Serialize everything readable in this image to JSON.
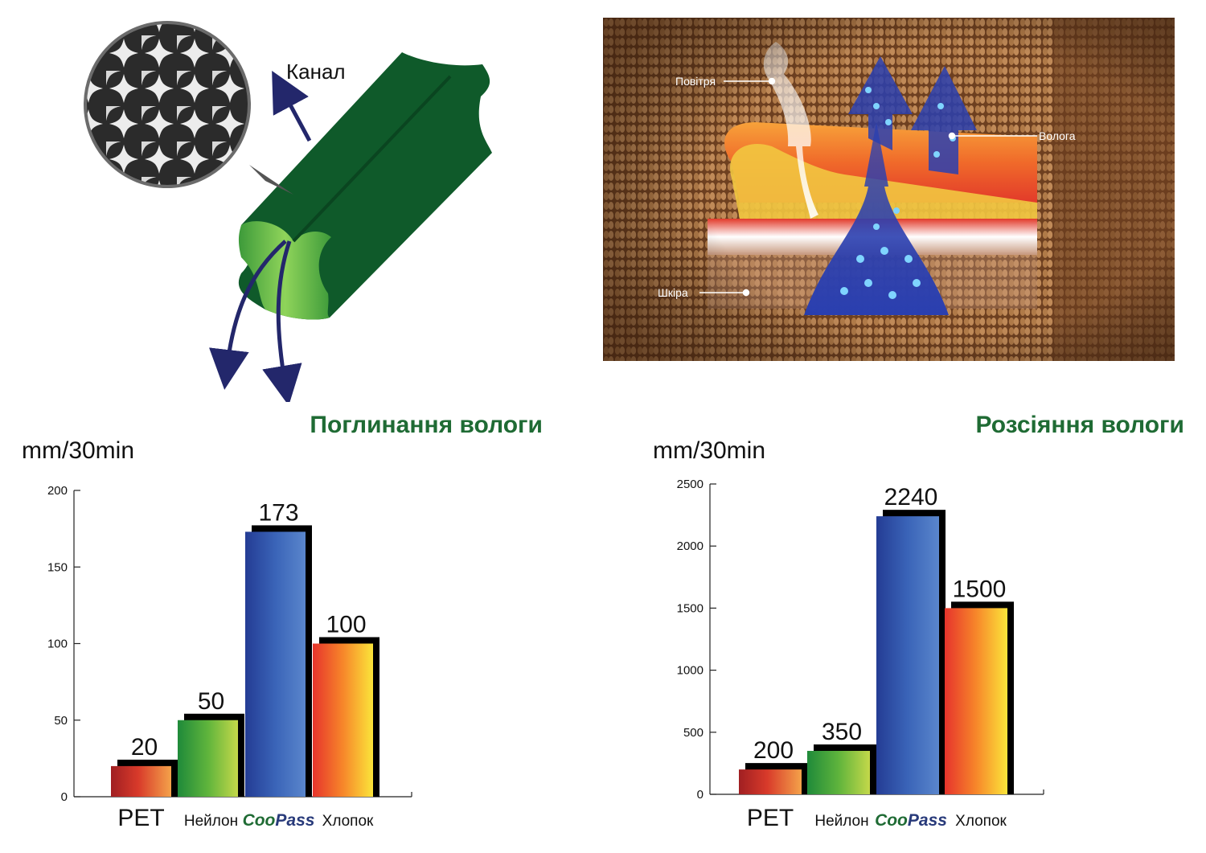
{
  "illustration": {
    "channel_label": "Канал",
    "air_label": "Повітря",
    "moisture_label": "Волога",
    "skin_label": "Шкіра"
  },
  "colors": {
    "title_green": "#1f6b34",
    "fiber_green": "#0f5a2a",
    "arrow_navy": "#23276b",
    "fabric_brown": "#8a5a34",
    "pet_bar": "#c62828",
    "nylon_bar": "#2e9d3a",
    "coopass_bar": "#3056a8",
    "cotton_bar": "#f2492a"
  },
  "chart_data": [
    {
      "type": "bar",
      "title": "Поглинання вологи",
      "ylabel": "mm/30min",
      "ylim": [
        0,
        200
      ],
      "yticks": [
        0,
        50,
        100,
        150,
        200
      ],
      "categories": [
        "PET",
        "Нейлон",
        "CooPass",
        "Хлопок"
      ],
      "values": [
        20,
        50,
        173,
        100
      ],
      "data_labels": [
        "20",
        "50",
        "173",
        "100"
      ]
    },
    {
      "type": "bar",
      "title": "Розсіяння вологи",
      "ylabel": "mm/30min",
      "ylim": [
        0,
        2500
      ],
      "yticks": [
        0,
        500,
        1000,
        1500,
        2000,
        2500
      ],
      "categories": [
        "PET",
        "Нейлон",
        "CooPass",
        "Хлопок"
      ],
      "values": [
        200,
        350,
        2240,
        1500
      ],
      "data_labels": [
        "200",
        "350",
        "2240",
        "1500"
      ]
    }
  ],
  "brand_parts": [
    "Coo",
    "Pass"
  ]
}
